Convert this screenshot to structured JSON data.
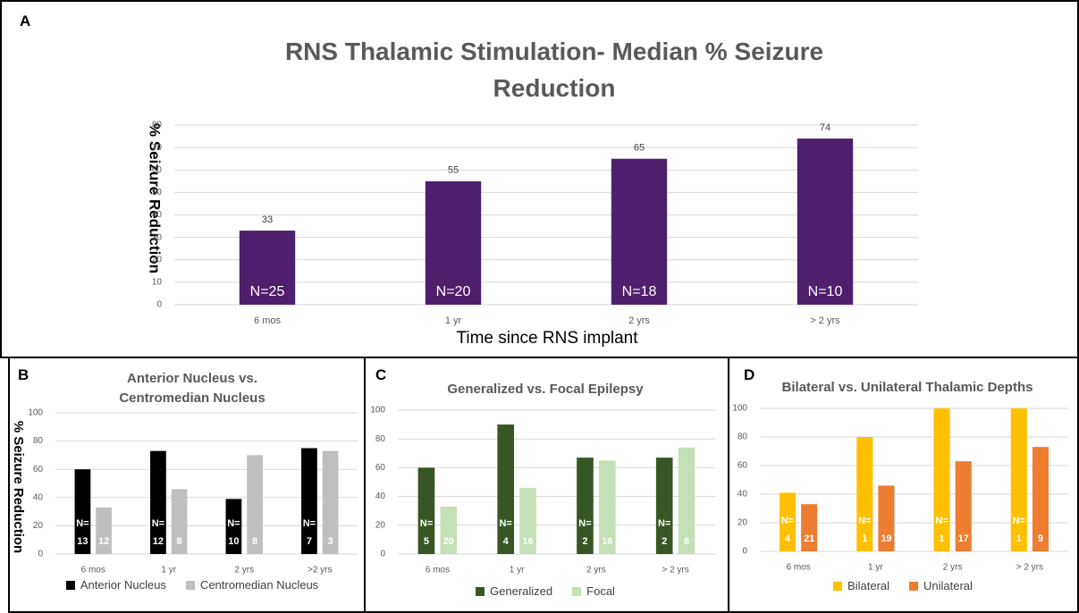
{
  "chart_data": [
    {
      "panel": "A",
      "type": "bar",
      "title": "RNS Thalamic Stimulation- Median % Seizure Reduction",
      "ylabel": "% Seizure Reduction",
      "xlabel": "Time since RNS implant",
      "categories": [
        "6 mos",
        "1 yr",
        "2 yrs",
        "> 2 yrs"
      ],
      "series": [
        {
          "color": "#4f1f6e",
          "values": [
            33,
            55,
            65,
            74
          ],
          "n_labels": [
            "N=25",
            "N=20",
            "N=18",
            "N=10"
          ]
        }
      ],
      "ylim": [
        0,
        80
      ],
      "yticks": [
        0,
        10,
        20,
        30,
        40,
        50,
        60,
        70,
        80
      ],
      "grid": true
    },
    {
      "panel": "B",
      "type": "bar",
      "title": "Anterior Nucleus vs. Centromedian Nucleus",
      "ylabel": "% Seizure Reduction",
      "categories": [
        "6 mos",
        "1 yr",
        "2 yrs",
        ">2 yrs"
      ],
      "series": [
        {
          "name": "Anterior Nucleus",
          "color": "#000000",
          "values": [
            60,
            73,
            39,
            75
          ],
          "n_labels": [
            "N=\n13",
            "N=\n12",
            "N=\n10",
            "N=\n7"
          ]
        },
        {
          "name": "Centromedian Nucleus",
          "color": "#bfbfbf",
          "values": [
            33,
            46,
            70,
            73
          ],
          "n_labels": [
            "12",
            "8",
            "8",
            "3"
          ]
        }
      ],
      "ylim": [
        0,
        100
      ],
      "yticks": [
        0,
        20,
        40,
        60,
        80,
        100
      ],
      "grid": true,
      "legend": "bottom"
    },
    {
      "panel": "C",
      "type": "bar",
      "title": "Generalized vs. Focal Epilepsy",
      "categories": [
        "6 mos",
        "1 yr",
        "2 yrs",
        "> 2 yrs"
      ],
      "series": [
        {
          "name": "Generalized",
          "color": "#375623",
          "values": [
            60,
            90,
            67,
            67
          ],
          "n_labels": [
            "N=\n5",
            "N=\n4",
            "N=\n2",
            "N=\n2"
          ]
        },
        {
          "name": "Focal",
          "color": "#c5e0b4",
          "values": [
            33,
            46,
            65,
            74
          ],
          "n_labels": [
            "20",
            "16",
            "16",
            "8"
          ]
        }
      ],
      "ylim": [
        0,
        100
      ],
      "yticks": [
        0,
        20,
        40,
        60,
        80,
        100
      ],
      "grid": true,
      "legend": "bottom"
    },
    {
      "panel": "D",
      "type": "bar",
      "title": "Bilateral vs. Unilateral Thalamic Depths",
      "categories": [
        "6 mos",
        "1 yr",
        "2 yrs",
        "> 2 yrs"
      ],
      "series": [
        {
          "name": "Bilateral",
          "color": "#ffc000",
          "values": [
            41,
            80,
            100,
            100
          ],
          "n_labels": [
            "N=\n4",
            "N=\n1",
            "N=\n1",
            "N=\n1"
          ]
        },
        {
          "name": "Unilateral",
          "color": "#ed7d31",
          "values": [
            33,
            46,
            63,
            73
          ],
          "n_labels": [
            "21",
            "19",
            "17",
            "9"
          ]
        }
      ],
      "ylim": [
        0,
        100
      ],
      "yticks": [
        0,
        20,
        40,
        60,
        80,
        100
      ],
      "grid": true,
      "legend": "bottom"
    }
  ]
}
